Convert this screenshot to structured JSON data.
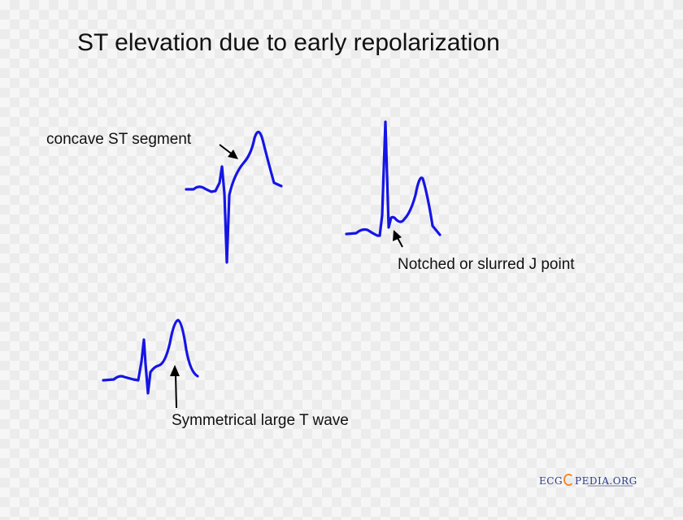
{
  "title": "ST elevation due to early repolarization",
  "labels": {
    "concave": "concave ST segment",
    "notched": "Notched or slurred J point",
    "symmetrical": "Symmetrical large T wave"
  },
  "watermark": {
    "left": "ECG",
    "right": "PEDIA.ORG"
  },
  "colors": {
    "trace": "#1515e6",
    "text": "#111111"
  }
}
